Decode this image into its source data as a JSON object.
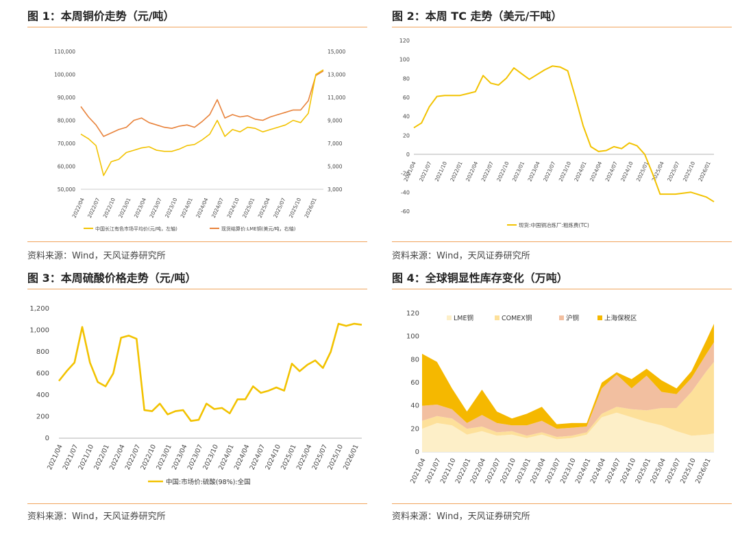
{
  "panels": {
    "p1": {
      "title": "图 1：本周铜价走势（元/吨）",
      "source": "资料来源：Wind，天风证券研究所"
    },
    "p2": {
      "title": "图 2：本周 TC 走势（美元/干吨）",
      "source": "资料来源：Wind，天风证券研究所"
    },
    "p3": {
      "title": "图 3：本周硫酸价格走势（元/吨）",
      "source": "资料来源：Wind，天风证券研究所"
    },
    "p4": {
      "title": "图 4：全球铜显性库存变化（万吨）",
      "source": "资料来源：Wind，天风证券研究所"
    }
  },
  "colors": {
    "accent": "#f0a35a",
    "gold": "#f2c200",
    "orange": "#e8823a",
    "lme": "#fdefc8",
    "comex": "#fde09a",
    "shfe": "#f2bfa0",
    "bonded": "#f5b800"
  },
  "chart_data": [
    {
      "id": "copper_price",
      "type": "line",
      "x_ticks": [
        "2022/04",
        "2022/07",
        "2022/10",
        "2023/01",
        "2023/04",
        "2023/07",
        "2023/10",
        "2024/01",
        "2024/04",
        "2024/07",
        "2024/10",
        "2025/01",
        "2025/04",
        "2025/07",
        "2025/10",
        "2026/01"
      ],
      "y_left_ticks": [
        "50,000",
        "60,000",
        "70,000",
        "80,000",
        "90,000",
        "100,000",
        "110,000"
      ],
      "y_right_ticks": [
        "3,000",
        "5,000",
        "7,000",
        "9,000",
        "11,000",
        "13,000",
        "15,000"
      ],
      "ylim_left": [
        50000,
        110000
      ],
      "ylim_right": [
        3000,
        15000
      ],
      "series": [
        {
          "name": "中国长江有色市场平均价(元/吨，左轴)",
          "axis": "left",
          "x": [
            0,
            0.5,
            1,
            1.5,
            2,
            2.5,
            3,
            3.5,
            4,
            4.5,
            5,
            5.5,
            6,
            6.5,
            7,
            7.5,
            8,
            8.5,
            9,
            9.5,
            10,
            10.5,
            11,
            11.5,
            12,
            12.5,
            13,
            13.5,
            14,
            14.5,
            15,
            15.5,
            16
          ],
          "values": [
            74000,
            72000,
            69000,
            56000,
            62000,
            63000,
            66000,
            67000,
            68000,
            68500,
            67000,
            66500,
            66500,
            67500,
            69000,
            69500,
            71500,
            74000,
            80000,
            73000,
            76000,
            75000,
            77000,
            76500,
            75000,
            76000,
            77000,
            78000,
            80000,
            79000,
            83000,
            100000,
            102000
          ]
        },
        {
          "name": "现货结算价:LME铜(美元/吨，右轴)",
          "axis": "right",
          "x": [
            0,
            0.5,
            1,
            1.5,
            2,
            2.5,
            3,
            3.5,
            4,
            4.5,
            5,
            5.5,
            6,
            6.5,
            7,
            7.5,
            8,
            8.5,
            9,
            9.5,
            10,
            10.5,
            11,
            11.5,
            12,
            12.5,
            13,
            13.5,
            14,
            14.5,
            15,
            15.5,
            16
          ],
          "values": [
            10200,
            9300,
            8600,
            7600,
            7900,
            8200,
            8400,
            9000,
            9200,
            8800,
            8600,
            8400,
            8300,
            8500,
            8600,
            8400,
            8900,
            9500,
            10800,
            9200,
            9500,
            9300,
            9400,
            9100,
            9000,
            9300,
            9500,
            9700,
            9900,
            9900,
            10700,
            12900,
            13300
          ]
        }
      ]
    },
    {
      "id": "tc",
      "type": "line",
      "x_ticks": [
        "2021/04",
        "2021/07",
        "2021/10",
        "2022/01",
        "2022/04",
        "2022/07",
        "2022/10",
        "2023/01",
        "2023/04",
        "2023/07",
        "2023/10",
        "2024/01",
        "2024/04",
        "2024/07",
        "2024/10",
        "2025/01",
        "2025/04",
        "2025/07",
        "2025/10",
        "2026/01"
      ],
      "y_ticks": [
        "-60",
        "-40",
        "-20",
        "0",
        "20",
        "40",
        "60",
        "80",
        "100",
        "120"
      ],
      "ylim": [
        -60,
        120
      ],
      "series": [
        {
          "name": "现货:中国铜冶炼厂:粗炼费(TC)",
          "x": [
            0,
            0.5,
            1,
            1.5,
            2,
            3,
            3.5,
            4,
            4.5,
            5,
            5.5,
            6,
            6.5,
            7,
            7.5,
            8,
            8.5,
            9,
            9.5,
            10,
            10.5,
            11,
            11.5,
            12,
            12.5,
            13,
            13.5,
            14,
            14.5,
            15,
            15.5,
            16,
            16.5,
            17,
            18,
            19,
            19.5
          ],
          "values": [
            28,
            33,
            50,
            61,
            62,
            62,
            64,
            66,
            83,
            75,
            73,
            80,
            91,
            85,
            79,
            84,
            89,
            93,
            92,
            88,
            60,
            30,
            8,
            3,
            4,
            8,
            6,
            12,
            9,
            0,
            -20,
            -42,
            -42,
            -42,
            -40,
            -45,
            -50
          ]
        }
      ]
    },
    {
      "id": "sulfuric_acid",
      "type": "line",
      "x_ticks": [
        "2021/04",
        "2021/07",
        "2021/10",
        "2022/01",
        "2022/04",
        "2022/07",
        "2022/10",
        "2023/01",
        "2023/04",
        "2023/07",
        "2023/10",
        "2024/01",
        "2024/04",
        "2024/07",
        "2024/10",
        "2025/01",
        "2025/04",
        "2025/07",
        "2025/10",
        "2026/01"
      ],
      "y_ticks": [
        "0",
        "200",
        "400",
        "600",
        "800",
        "1,000",
        "1,200"
      ],
      "ylim": [
        0,
        1200
      ],
      "series": [
        {
          "name": "中国:市场价:硫酸(98%):全国",
          "x": [
            0,
            0.5,
            1,
            1.5,
            2,
            2.5,
            3,
            3.5,
            4,
            4.5,
            5,
            5.5,
            6,
            6.5,
            7,
            7.5,
            8,
            8.5,
            9,
            9.5,
            10,
            10.5,
            11,
            11.5,
            12,
            12.5,
            13,
            13.5,
            14,
            14.5,
            15,
            15.5,
            16,
            16.5,
            17,
            17.5,
            18,
            18.5,
            19,
            19.5
          ],
          "values": [
            530,
            620,
            700,
            1030,
            700,
            520,
            480,
            600,
            930,
            950,
            920,
            260,
            250,
            320,
            220,
            250,
            260,
            160,
            170,
            320,
            270,
            280,
            230,
            360,
            360,
            480,
            420,
            440,
            470,
            440,
            690,
            620,
            680,
            720,
            650,
            800,
            1060,
            1040,
            1060,
            1050
          ]
        }
      ]
    },
    {
      "id": "inventory",
      "type": "area",
      "stacked": true,
      "x_ticks": [
        "2021/04",
        "2021/07",
        "2021/10",
        "2022/01",
        "2022/04",
        "2022/07",
        "2022/10",
        "2023/01",
        "2023/04",
        "2023/07",
        "2023/10",
        "2024/01",
        "2024/04",
        "2024/07",
        "2024/10",
        "2025/01",
        "2025/04",
        "2025/07",
        "2025/10",
        "2026/01"
      ],
      "y_ticks": [
        "0",
        "20",
        "40",
        "60",
        "80",
        "100",
        "120"
      ],
      "ylim": [
        0,
        120
      ],
      "x": [
        0,
        1,
        2,
        3,
        4,
        5,
        6,
        7,
        8,
        9,
        10,
        11,
        12,
        13,
        14,
        15,
        16,
        17,
        18,
        19,
        19.5
      ],
      "series": [
        {
          "name": "LME铜",
          "values": [
            20,
            25,
            23,
            15,
            18,
            14,
            15,
            12,
            15,
            11,
            12,
            15,
            30,
            34,
            30,
            26,
            23,
            18,
            14,
            15,
            16
          ]
        },
        {
          "name": "COMEX铜",
          "values": [
            7,
            6,
            6,
            5,
            4,
            3,
            3,
            2,
            2,
            2,
            2,
            2,
            3,
            5,
            7,
            10,
            15,
            20,
            38,
            55,
            62
          ]
        },
        {
          "name": "沪铜",
          "values": [
            13,
            10,
            8,
            5,
            10,
            8,
            5,
            9,
            10,
            7,
            7,
            5,
            22,
            28,
            18,
            30,
            14,
            12,
            12,
            15,
            17
          ]
        },
        {
          "name": "上海保税区",
          "values": [
            45,
            37,
            18,
            10,
            22,
            10,
            6,
            10,
            12,
            4,
            4,
            3,
            5,
            2,
            8,
            6,
            10,
            5,
            6,
            12,
            16
          ]
        }
      ]
    }
  ]
}
